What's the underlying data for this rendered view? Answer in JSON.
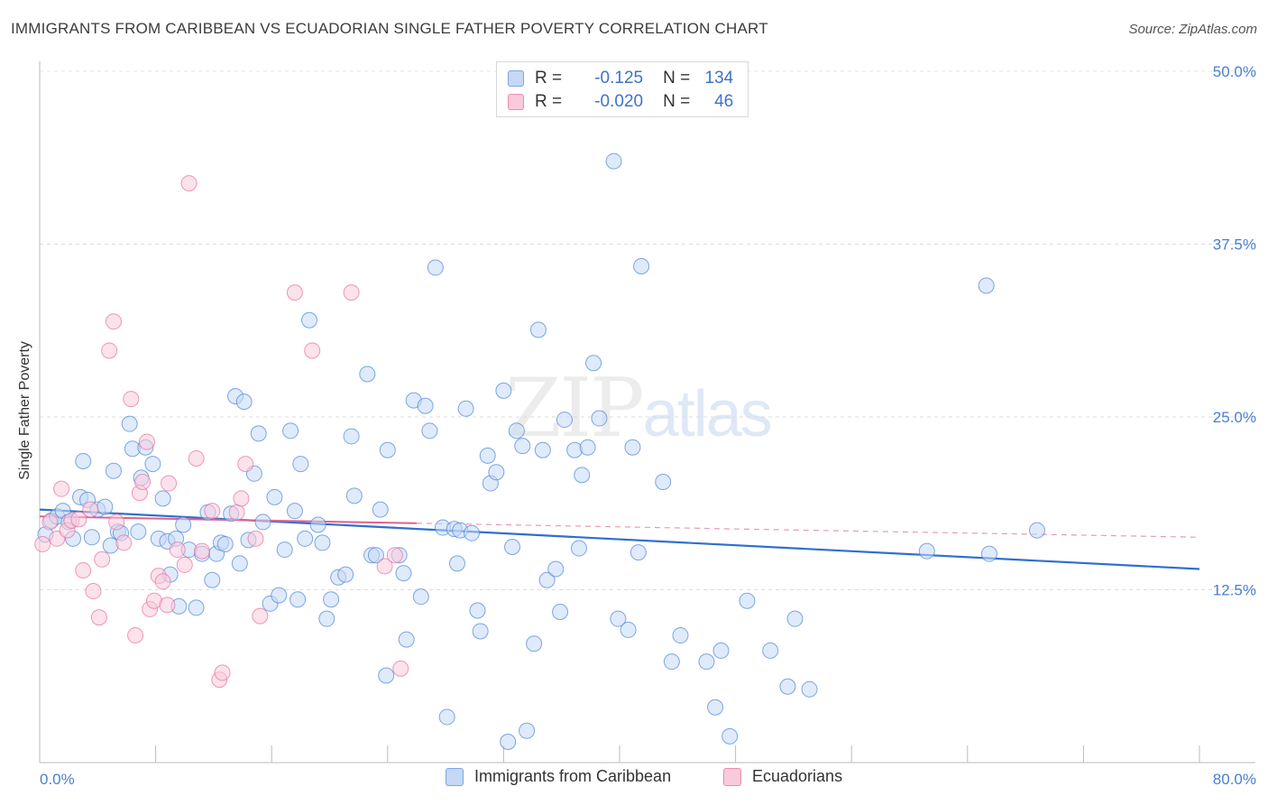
{
  "title": "IMMIGRANTS FROM CARIBBEAN VS ECUADORIAN SINGLE FATHER POVERTY CORRELATION CHART",
  "source": "Source: ZipAtlas.com",
  "watermark": {
    "zip": "ZIP",
    "atlas": "atlas"
  },
  "stats": [
    {
      "r_label": "R =",
      "r_value": "-0.125",
      "n_label": "N =",
      "n_value": "134",
      "color": "#7aa6e6",
      "fill": "#c5d8f5"
    },
    {
      "r_label": "R =",
      "r_value": "-0.020",
      "n_label": "N =",
      "n_value": "46",
      "color": "#eb8db0",
      "fill": "#f8cadb"
    }
  ],
  "legend": [
    {
      "label": "Immigrants from Caribbean",
      "color": "#7aa6e6",
      "fill": "#c5d8f5"
    },
    {
      "label": "Ecuadorians",
      "color": "#eb8db0",
      "fill": "#f8cadb"
    }
  ],
  "chart_data": {
    "type": "scatter",
    "title": "IMMIGRANTS FROM CARIBBEAN VS ECUADORIAN SINGLE FATHER POVERTY CORRELATION CHART",
    "xlabel": "",
    "ylabel": "Single Father Poverty",
    "xlim": [
      0,
      80
    ],
    "ylim": [
      0,
      50
    ],
    "x_tick_labels": [
      "0.0%",
      "80.0%"
    ],
    "y_ticks": [
      12.5,
      25.0,
      37.5,
      50.0
    ],
    "y_tick_labels": [
      "12.5%",
      "25.0%",
      "37.5%",
      "50.0%"
    ],
    "grid": true,
    "legend_position": "bottom",
    "series": [
      {
        "name": "Immigrants from Caribbean",
        "color": "#4a84d6",
        "fill": "#c5d8f5",
        "trend": {
          "x": [
            0,
            80
          ],
          "y": [
            18.3,
            14.0
          ]
        },
        "points": [
          [
            0.4,
            16.5
          ],
          [
            0.8,
            17.5
          ],
          [
            1.2,
            17.8
          ],
          [
            1.6,
            18.2
          ],
          [
            2.0,
            17.4
          ],
          [
            2.3,
            16.2
          ],
          [
            2.8,
            19.2
          ],
          [
            3.0,
            21.8
          ],
          [
            3.3,
            19.0
          ],
          [
            3.6,
            16.3
          ],
          [
            4.0,
            18.3
          ],
          [
            4.5,
            18.5
          ],
          [
            4.9,
            15.7
          ],
          [
            5.1,
            21.1
          ],
          [
            5.4,
            16.7
          ],
          [
            5.6,
            16.6
          ],
          [
            6.2,
            24.5
          ],
          [
            6.4,
            22.7
          ],
          [
            6.8,
            16.7
          ],
          [
            7.0,
            20.6
          ],
          [
            7.3,
            22.8
          ],
          [
            7.8,
            21.6
          ],
          [
            8.2,
            16.2
          ],
          [
            8.5,
            19.1
          ],
          [
            8.8,
            16.0
          ],
          [
            9.0,
            13.6
          ],
          [
            9.4,
            16.2
          ],
          [
            9.6,
            11.3
          ],
          [
            9.9,
            17.2
          ],
          [
            10.3,
            15.4
          ],
          [
            10.8,
            11.2
          ],
          [
            11.2,
            15.1
          ],
          [
            11.6,
            18.1
          ],
          [
            11.9,
            13.2
          ],
          [
            12.2,
            15.1
          ],
          [
            12.5,
            15.9
          ],
          [
            12.8,
            15.8
          ],
          [
            13.2,
            18.0
          ],
          [
            13.5,
            26.5
          ],
          [
            13.8,
            14.4
          ],
          [
            14.1,
            26.1
          ],
          [
            14.4,
            16.1
          ],
          [
            14.8,
            20.9
          ],
          [
            15.1,
            23.8
          ],
          [
            15.4,
            17.4
          ],
          [
            15.9,
            11.5
          ],
          [
            16.2,
            19.2
          ],
          [
            16.5,
            12.1
          ],
          [
            16.9,
            15.4
          ],
          [
            17.3,
            24.0
          ],
          [
            17.6,
            18.2
          ],
          [
            17.8,
            11.8
          ],
          [
            18.0,
            21.6
          ],
          [
            18.3,
            16.2
          ],
          [
            18.6,
            32.0
          ],
          [
            19.2,
            17.2
          ],
          [
            19.5,
            15.9
          ],
          [
            19.8,
            10.4
          ],
          [
            20.1,
            11.8
          ],
          [
            20.6,
            13.4
          ],
          [
            21.1,
            13.6
          ],
          [
            21.5,
            23.6
          ],
          [
            21.7,
            19.3
          ],
          [
            22.6,
            28.1
          ],
          [
            22.9,
            15.0
          ],
          [
            23.2,
            15.0
          ],
          [
            23.5,
            18.3
          ],
          [
            23.9,
            6.3
          ],
          [
            24.0,
            22.6
          ],
          [
            24.8,
            15.0
          ],
          [
            25.1,
            13.7
          ],
          [
            25.3,
            8.9
          ],
          [
            25.8,
            26.2
          ],
          [
            26.3,
            12.0
          ],
          [
            26.6,
            25.8
          ],
          [
            26.9,
            24.0
          ],
          [
            27.3,
            35.8
          ],
          [
            27.8,
            17.0
          ],
          [
            28.1,
            3.3
          ],
          [
            28.6,
            16.9
          ],
          [
            28.8,
            14.4
          ],
          [
            29.0,
            16.8
          ],
          [
            29.4,
            25.6
          ],
          [
            29.8,
            16.6
          ],
          [
            30.2,
            11.0
          ],
          [
            30.4,
            9.5
          ],
          [
            30.9,
            22.2
          ],
          [
            31.1,
            20.2
          ],
          [
            31.5,
            21.0
          ],
          [
            32.0,
            26.9
          ],
          [
            32.3,
            1.5
          ],
          [
            32.6,
            15.6
          ],
          [
            32.9,
            24.0
          ],
          [
            33.3,
            22.9
          ],
          [
            33.6,
            2.3
          ],
          [
            34.1,
            8.6
          ],
          [
            34.4,
            31.3
          ],
          [
            34.7,
            22.6
          ],
          [
            35.0,
            13.2
          ],
          [
            35.6,
            14.0
          ],
          [
            35.9,
            10.9
          ],
          [
            36.2,
            24.8
          ],
          [
            36.9,
            22.6
          ],
          [
            37.2,
            15.5
          ],
          [
            37.8,
            22.8
          ],
          [
            37.4,
            20.8
          ],
          [
            38.2,
            28.9
          ],
          [
            38.6,
            24.9
          ],
          [
            39.6,
            43.5
          ],
          [
            39.9,
            10.4
          ],
          [
            40.6,
            9.6
          ],
          [
            40.9,
            22.8
          ],
          [
            41.3,
            15.2
          ],
          [
            41.5,
            35.9
          ],
          [
            43.0,
            20.3
          ],
          [
            43.6,
            7.3
          ],
          [
            44.2,
            9.2
          ],
          [
            46.0,
            7.3
          ],
          [
            46.6,
            4.0
          ],
          [
            47.0,
            8.1
          ],
          [
            47.6,
            1.9
          ],
          [
            48.8,
            11.7
          ],
          [
            50.4,
            8.1
          ],
          [
            51.6,
            5.5
          ],
          [
            52.1,
            10.4
          ],
          [
            53.1,
            5.3
          ],
          [
            61.2,
            15.3
          ],
          [
            65.3,
            34.5
          ],
          [
            65.5,
            15.1
          ],
          [
            68.8,
            16.8
          ]
        ]
      },
      {
        "name": "Ecuadorians",
        "color": "#e86f9c",
        "fill": "#f8cadb",
        "trend": {
          "x": [
            0,
            80
          ],
          "y": [
            17.8,
            16.3
          ]
        },
        "points": [
          [
            0.2,
            15.8
          ],
          [
            0.7,
            17.4
          ],
          [
            1.2,
            16.2
          ],
          [
            1.5,
            19.8
          ],
          [
            1.9,
            16.8
          ],
          [
            2.2,
            17.5
          ],
          [
            2.7,
            17.6
          ],
          [
            3.0,
            13.9
          ],
          [
            3.5,
            18.3
          ],
          [
            3.7,
            12.4
          ],
          [
            4.1,
            10.5
          ],
          [
            4.3,
            14.7
          ],
          [
            4.8,
            29.8
          ],
          [
            5.1,
            31.9
          ],
          [
            5.3,
            17.4
          ],
          [
            5.8,
            15.9
          ],
          [
            6.3,
            26.3
          ],
          [
            6.6,
            9.2
          ],
          [
            6.9,
            19.5
          ],
          [
            7.1,
            20.3
          ],
          [
            7.4,
            23.2
          ],
          [
            7.6,
            11.1
          ],
          [
            7.9,
            11.7
          ],
          [
            8.2,
            13.5
          ],
          [
            8.5,
            13.1
          ],
          [
            8.8,
            11.4
          ],
          [
            8.9,
            20.2
          ],
          [
            9.5,
            15.4
          ],
          [
            10.0,
            14.3
          ],
          [
            10.3,
            41.9
          ],
          [
            10.8,
            22.0
          ],
          [
            11.2,
            15.3
          ],
          [
            11.9,
            18.2
          ],
          [
            12.4,
            6.0
          ],
          [
            12.6,
            6.5
          ],
          [
            13.6,
            18.1
          ],
          [
            13.9,
            19.1
          ],
          [
            14.2,
            21.6
          ],
          [
            14.9,
            16.2
          ],
          [
            15.2,
            10.6
          ],
          [
            17.6,
            34.0
          ],
          [
            18.8,
            29.8
          ],
          [
            21.5,
            34.0
          ],
          [
            23.8,
            14.2
          ],
          [
            24.5,
            15.0
          ],
          [
            24.9,
            6.8
          ]
        ]
      }
    ]
  }
}
